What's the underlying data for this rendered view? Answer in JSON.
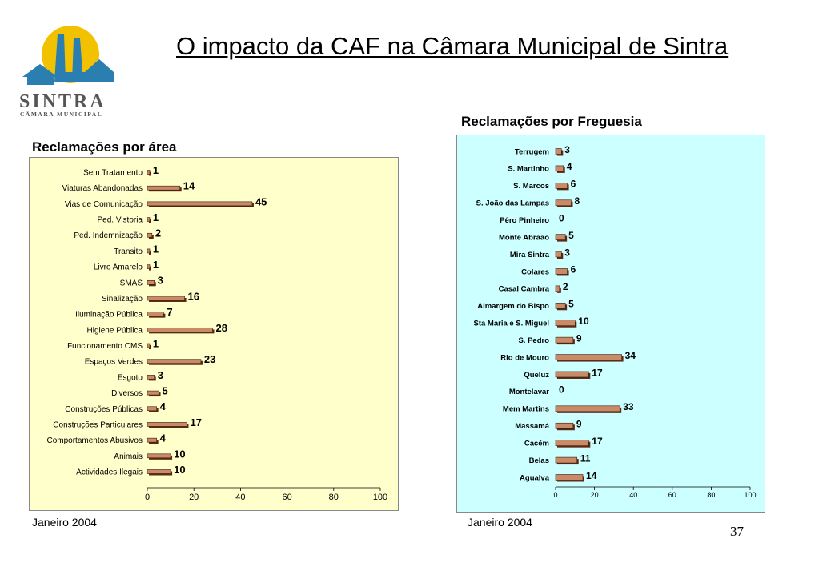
{
  "slide": {
    "title": "O impacto da CAF na Câmara Municipal de Sintra",
    "logo_text": "SINTRA",
    "logo_subtext": "CÂMARA MUNICIPAL",
    "page_number": "37"
  },
  "colors": {
    "left_background": "#ffffcc",
    "right_background": "#ccffff",
    "bar_fill": "#c98a67",
    "bar_shadow": "#5a2a14",
    "logo_blue": "#2a7fb0",
    "logo_yellow": "#f2c200",
    "logo_gray": "#555555"
  },
  "chart_data": [
    {
      "type": "bar",
      "orientation": "horizontal",
      "title": "Reclamações por área",
      "footer": "Janeiro 2004",
      "xlim": [
        0,
        100
      ],
      "x_ticks": [
        0,
        20,
        40,
        60,
        80,
        100
      ],
      "grid": false,
      "categories": [
        "Sem Tratamento",
        "Viaturas Abandonadas",
        "Vias de Comunicação",
        "Ped. Vistoria",
        "Ped. Indemnização",
        "Transito",
        "Livro Amarelo",
        "SMAS",
        "Sinalização",
        "Iluminação Pública",
        "Higiene Pública",
        "Funcionamento CMS",
        "Espaços Verdes",
        "Esgoto",
        "Diversos",
        "Construções Públicas",
        "Construções Particulares",
        "Comportamentos Abusivos",
        "Animais",
        "Actividades Ilegais"
      ],
      "values": [
        1,
        14,
        45,
        1,
        2,
        1,
        1,
        3,
        16,
        7,
        28,
        1,
        23,
        3,
        5,
        4,
        17,
        4,
        10,
        10
      ]
    },
    {
      "type": "bar",
      "orientation": "horizontal",
      "title": "Reclamações por Freguesia",
      "footer": "Janeiro 2004",
      "xlim": [
        0,
        100
      ],
      "x_ticks": [
        0,
        20,
        40,
        60,
        80,
        100
      ],
      "grid": false,
      "categories": [
        "Terrugem",
        "S. Martinho",
        "S. Marcos",
        "S. João das Lampas",
        "Pêro Pinheiro",
        "Monte Abraão",
        "Mira Sintra",
        "Colares",
        "Casal Cambra",
        "Almargem do Bispo",
        "Sta Maria e S. Miguel",
        "S. Pedro",
        "Rio de Mouro",
        "Queluz",
        "Montelavar",
        "Mem Martins",
        "Massamá",
        "Cacém",
        "Belas",
        "Agualva"
      ],
      "values": [
        3,
        4,
        6,
        8,
        0,
        5,
        3,
        6,
        2,
        5,
        10,
        9,
        34,
        17,
        0,
        33,
        9,
        17,
        11,
        14
      ]
    }
  ]
}
